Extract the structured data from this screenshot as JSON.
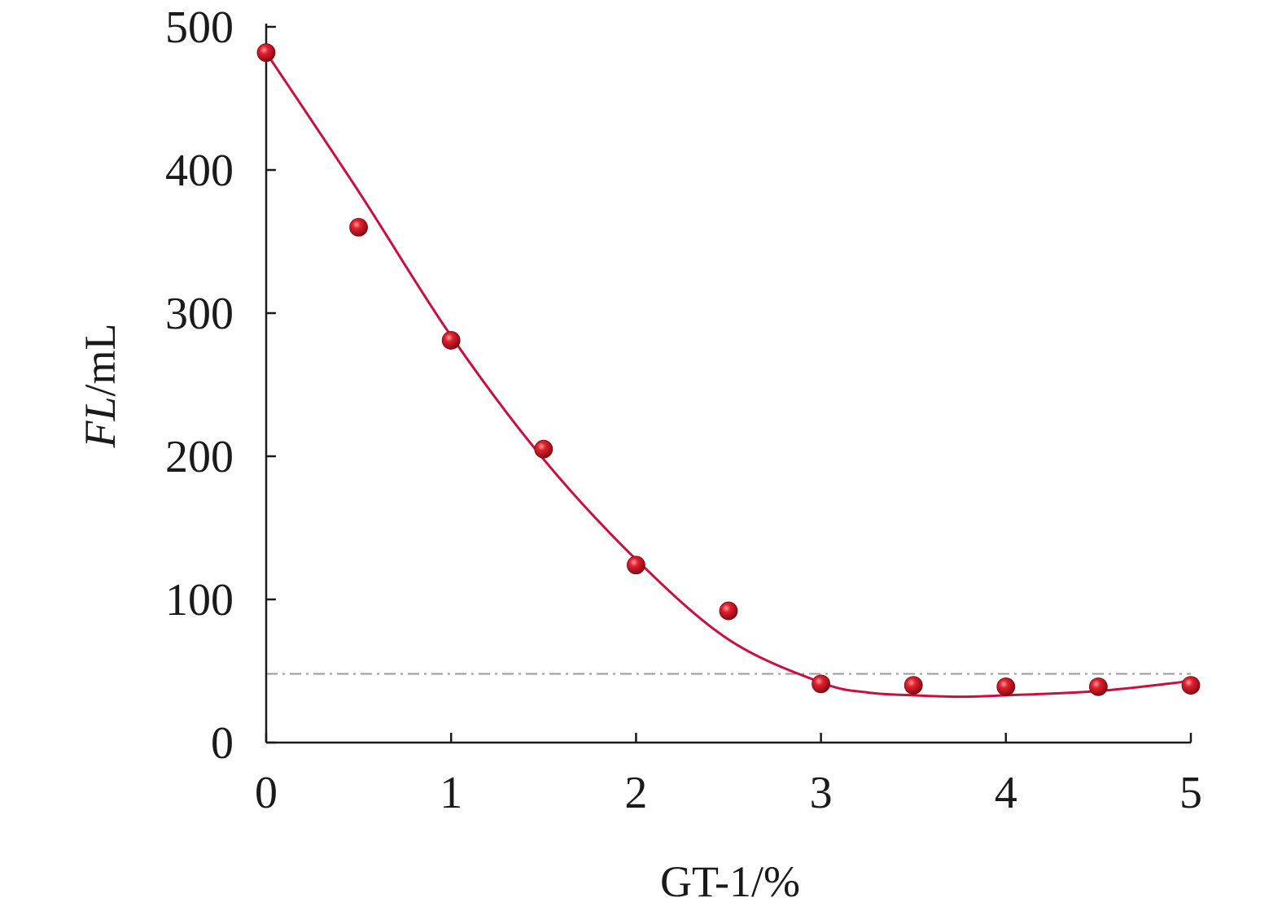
{
  "chart_data": {
    "type": "scatter",
    "xlabel": "GT-1/%",
    "ylabel_italic": "FL",
    "ylabel_unit": "/mL",
    "xlim": [
      0,
      5
    ],
    "ylim": [
      0,
      500
    ],
    "x_ticks": [
      0,
      1,
      2,
      3,
      4,
      5
    ],
    "y_ticks": [
      0,
      100,
      200,
      300,
      400,
      500
    ],
    "grid": false,
    "legend": "none",
    "points": {
      "x": [
        0,
        0.5,
        1,
        1.5,
        2,
        2.5,
        3,
        3.5,
        4,
        4.5,
        5
      ],
      "y": [
        482,
        360,
        281,
        205,
        124,
        92,
        41,
        40,
        39,
        39,
        40
      ],
      "color": "#e0202e"
    },
    "fit_curve": {
      "x": [
        0,
        0.5,
        1,
        1.5,
        2,
        2.5,
        3,
        3.25,
        3.5,
        3.75,
        4,
        4.5,
        5
      ],
      "y": [
        482,
        385,
        284,
        198,
        128,
        72,
        42,
        35,
        33,
        32,
        33,
        36,
        43
      ],
      "color": "#c8103e"
    },
    "reference_line": {
      "y": 48,
      "style": "dash-dot",
      "color": "#9a9a9a"
    }
  }
}
